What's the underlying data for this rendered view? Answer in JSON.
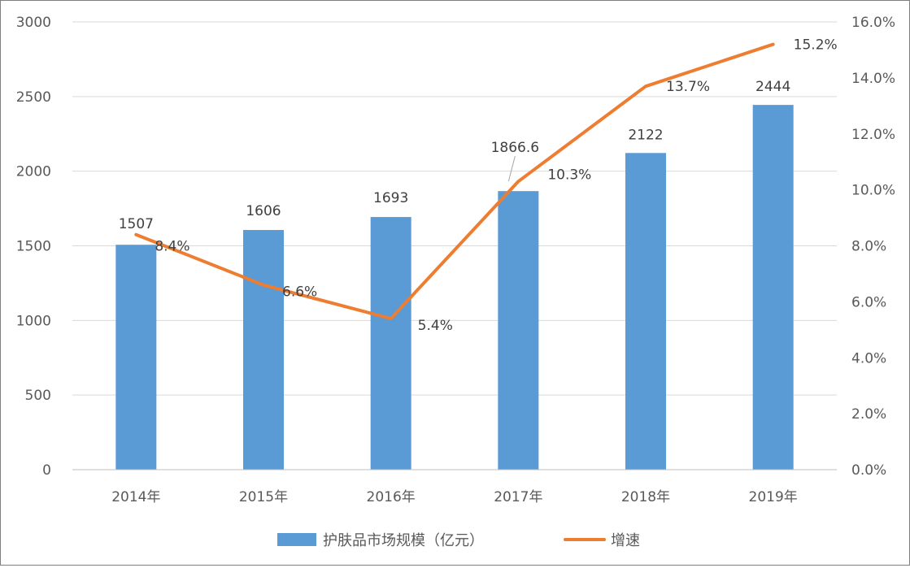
{
  "chart_data": {
    "type": "bar",
    "categories": [
      "2014年",
      "2015年",
      "2016年",
      "2017年",
      "2018年",
      "2019年"
    ],
    "series": [
      {
        "name": "护肤品市场规模（亿元）",
        "type": "bar",
        "axis": "left",
        "color": "#5B9BD5",
        "values": [
          1507,
          1606,
          1693,
          1866.6,
          2122,
          2444
        ],
        "labels": [
          "1507",
          "1606",
          "1693",
          "1866.6",
          "2122",
          "2444"
        ]
      },
      {
        "name": "增速",
        "type": "line",
        "axis": "right",
        "color": "#ED7D31",
        "values": [
          8.4,
          6.6,
          5.4,
          10.3,
          13.7,
          15.2
        ],
        "labels": [
          "8.4%",
          "6.6%",
          "5.4%",
          "10.3%",
          "13.7%",
          "15.2%"
        ]
      }
    ],
    "y_left": {
      "lim": [
        0,
        3000
      ],
      "ticks": [
        0,
        500,
        1000,
        1500,
        2000,
        2500,
        3000
      ],
      "tick_labels": [
        "0",
        "500",
        "1000",
        "1500",
        "2000",
        "2500",
        "3000"
      ]
    },
    "y_right": {
      "lim": [
        0,
        16
      ],
      "ticks": [
        0,
        2,
        4,
        6,
        8,
        10,
        12,
        14,
        16
      ],
      "tick_labels": [
        "0.0%",
        "2.0%",
        "4.0%",
        "6.0%",
        "8.0%",
        "10.0%",
        "12.0%",
        "14.0%",
        "16.0%"
      ]
    },
    "grid": true,
    "legend_position": "bottom",
    "title": "",
    "xlabel": "",
    "ylabel": ""
  }
}
